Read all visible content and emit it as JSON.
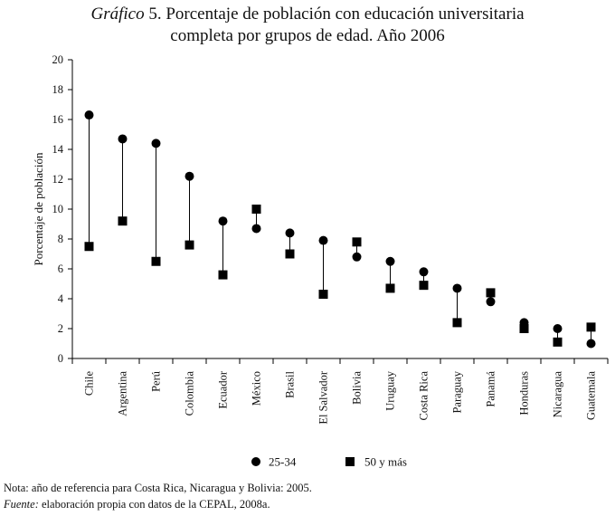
{
  "title": {
    "label": "Gráfico",
    "number": "5.",
    "line1": "Porcentaje de población con educación universitaria",
    "line2": "completa por grupos de edad. Año 2006"
  },
  "chart_data": {
    "type": "scatter",
    "categories": [
      "Chile",
      "Argentina",
      "Perú",
      "Colombia",
      "Ecuador",
      "México",
      "Brasil",
      "El Salvador",
      "Bolivia",
      "Uruguay",
      "Costa Rica",
      "Paraguay",
      "Panamá",
      "Honduras",
      "Nicaragua",
      "Guatemala"
    ],
    "series": [
      {
        "name": "25-34",
        "marker": "circle",
        "values": [
          16.3,
          14.7,
          14.4,
          12.2,
          9.2,
          8.7,
          8.4,
          7.9,
          6.8,
          6.5,
          5.8,
          4.7,
          3.8,
          2.4,
          2.0,
          1.0
        ]
      },
      {
        "name": "50 y más",
        "marker": "square",
        "values": [
          7.5,
          9.2,
          6.5,
          7.6,
          5.6,
          10.0,
          7.0,
          4.3,
          7.8,
          4.7,
          4.9,
          2.4,
          4.4,
          2.0,
          1.1,
          2.1
        ]
      }
    ],
    "ylabel": "Porcentaje de población",
    "xlabel": "",
    "ylim": [
      0,
      20
    ],
    "yticks": [
      0,
      2,
      4,
      6,
      8,
      10,
      12,
      14,
      16,
      18,
      20
    ],
    "legend_position": "bottom",
    "range_lines": true
  },
  "notes": {
    "note_label": "Nota:",
    "note_text": "año de referencia para Costa Rica, Nicaragua y Bolivia: 2005.",
    "source_label": "Fuente:",
    "source_text": "elaboración propia con datos de la CEPAL, 2008a."
  }
}
